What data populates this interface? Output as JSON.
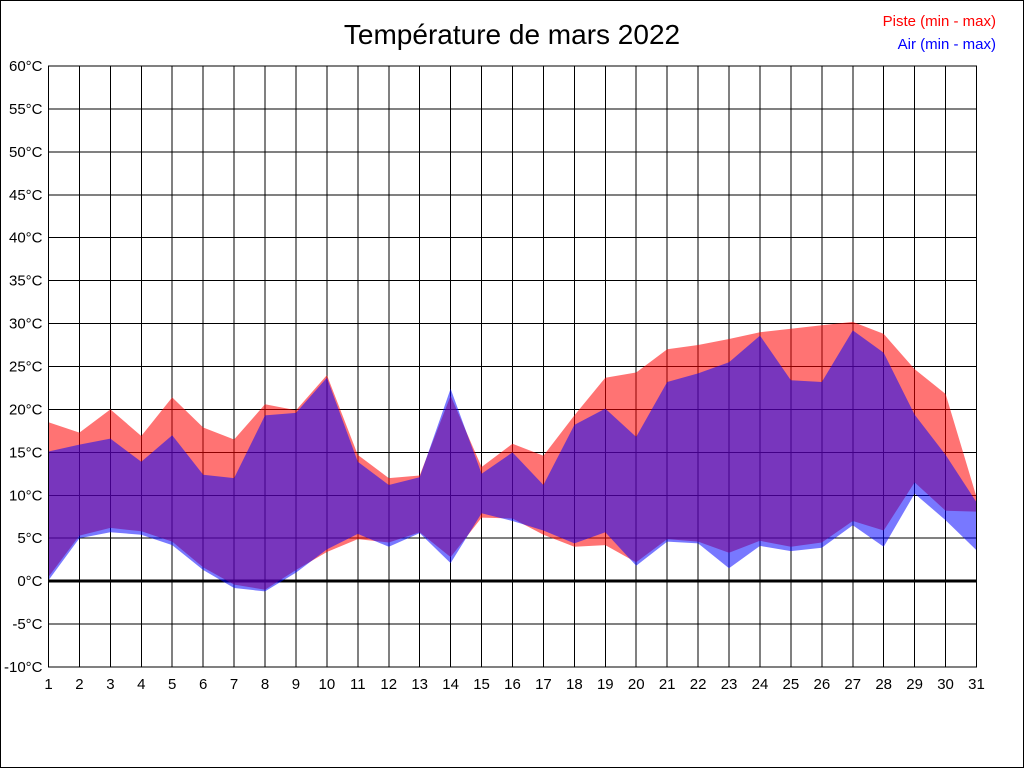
{
  "title": "Température de mars 2022",
  "legend": [
    {
      "label": "Piste (min - max)",
      "color": "#ff0000"
    },
    {
      "label": "Air (min - max)",
      "color": "#0000ff"
    }
  ],
  "chart_data": {
    "type": "area",
    "title": "Température de mars 2022",
    "x_label": "",
    "y_label": "",
    "ylim": [
      -10,
      60
    ],
    "ytick_step": 5,
    "grid": true,
    "zero_line": true,
    "legend_position": "top-right",
    "x": [
      1,
      2,
      3,
      4,
      5,
      6,
      7,
      8,
      9,
      10,
      11,
      12,
      13,
      14,
      15,
      16,
      17,
      18,
      19,
      20,
      21,
      22,
      23,
      24,
      25,
      26,
      27,
      28,
      29,
      30,
      31
    ],
    "x_tick_labels": [
      "1",
      "2",
      "3",
      "4",
      "5",
      "6",
      "7",
      "8",
      "9",
      "10",
      "11",
      "12",
      "13",
      "14",
      "15",
      "16",
      "17",
      "18",
      "19",
      "20",
      "21",
      "22",
      "23",
      "24",
      "25",
      "26",
      "27",
      "28",
      "29",
      "30",
      "31"
    ],
    "y_tick_labels": [
      "60°C",
      "55°C",
      "50°C",
      "45°C",
      "40°C",
      "35°C",
      "30°C",
      "25°C",
      "20°C",
      "15°C",
      "10°C",
      "5°C",
      "0°C",
      "-5°C",
      "-10°C"
    ],
    "series": [
      {
        "name": "Piste (min - max)",
        "color": "#ff0000",
        "opacity": 0.55,
        "min": [
          0.5,
          5.3,
          6.2,
          5.8,
          4.6,
          1.6,
          -0.4,
          -1.0,
          1.3,
          3.4,
          4.9,
          4.5,
          5.7,
          2.8,
          7.4,
          7.3,
          5.4,
          4.0,
          4.2,
          2.2,
          4.9,
          4.6,
          3.3,
          4.7,
          4.0,
          4.5,
          7.0,
          5.9,
          11.5,
          8.2,
          8.1
        ],
        "max": [
          18.5,
          17.3,
          20.0,
          16.9,
          21.4,
          17.9,
          16.5,
          20.6,
          19.9,
          24.0,
          14.7,
          12.0,
          12.3,
          21.6,
          13.3,
          16.0,
          14.6,
          19.3,
          23.7,
          24.3,
          27.0,
          27.5,
          28.2,
          29.0,
          29.4,
          29.8,
          30.2,
          28.8,
          24.7,
          21.8,
          9.8
        ]
      },
      {
        "name": "Air (min - max)",
        "color": "#0000ff",
        "opacity": 0.53,
        "min": [
          0.1,
          5.0,
          5.7,
          5.4,
          4.2,
          1.3,
          -0.8,
          -1.2,
          1.0,
          3.7,
          5.5,
          4.0,
          5.6,
          2.1,
          7.9,
          7.0,
          5.9,
          4.4,
          5.7,
          1.8,
          4.6,
          4.4,
          1.5,
          4.1,
          3.5,
          3.9,
          6.5,
          4.0,
          10.2,
          7.1,
          3.6
        ],
        "max": [
          15.1,
          15.9,
          16.6,
          13.9,
          17.0,
          12.4,
          12.0,
          19.3,
          19.6,
          23.7,
          13.9,
          11.2,
          12.1,
          22.4,
          12.5,
          15.0,
          11.2,
          18.2,
          20.1,
          16.8,
          23.2,
          24.2,
          25.5,
          28.6,
          23.4,
          23.2,
          29.2,
          26.6,
          19.4,
          14.7,
          9.2
        ]
      }
    ]
  }
}
